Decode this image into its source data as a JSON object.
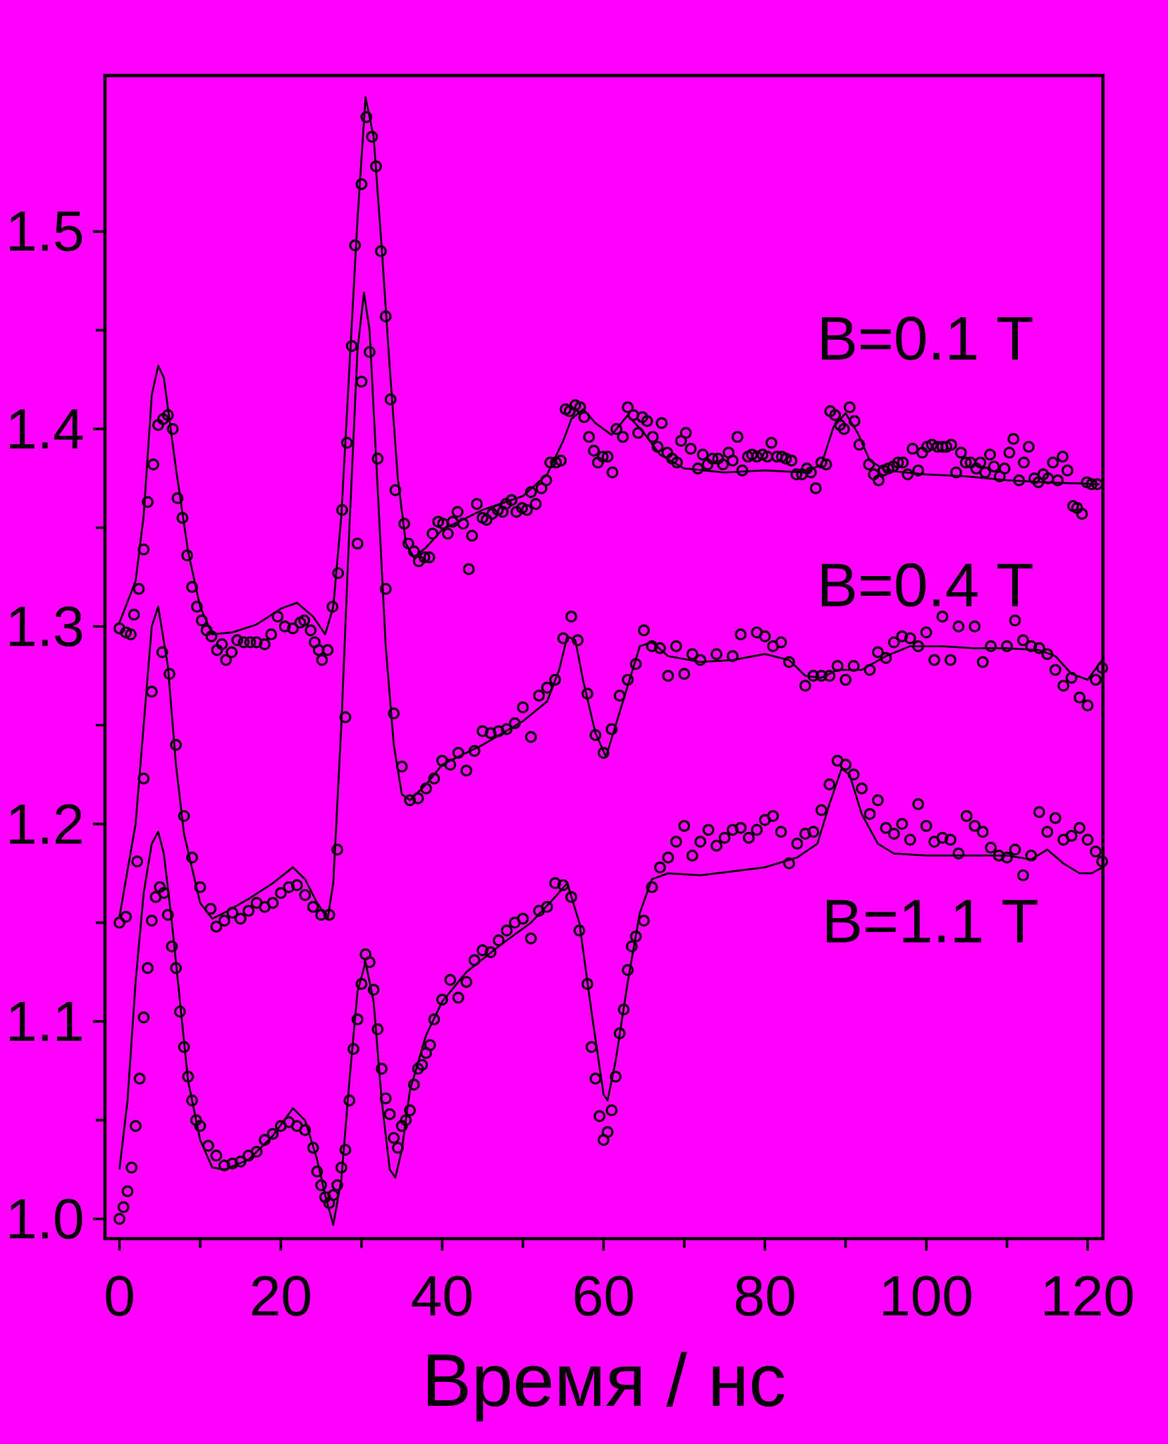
{
  "chart_data": {
    "type": "scatter",
    "xlabel": "Время / нс",
    "xlim": [
      -1.8,
      121.9
    ],
    "ylim": [
      0.99,
      1.579
    ],
    "xticks": [
      0,
      20,
      40,
      60,
      80,
      100,
      120
    ],
    "yticks": [
      {
        "value": 1.0,
        "label": "1.0"
      },
      {
        "value": 1.1,
        "label": "1.1"
      },
      {
        "value": 1.2,
        "label": "1.2"
      },
      {
        "value": 1.3,
        "label": "1.3"
      },
      {
        "value": 1.4,
        "label": "1.4"
      },
      {
        "value": 1.5,
        "label": "1.5"
      }
    ],
    "series": [
      {
        "name": "B=0.1 T",
        "marker": "circle",
        "color": "#000000",
        "x": [
          0,
          0.8,
          1.4,
          1.8,
          2.4,
          3.0,
          3.5,
          4.2,
          4.8,
          5.4,
          6.0,
          6.6,
          7.2,
          7.8,
          8.4,
          9.0,
          9.6,
          10.2,
          10.8,
          11.4,
          12.1,
          12.7,
          13.2,
          13.9,
          14.6,
          15.4,
          16.2,
          17.0,
          18.0,
          18.8,
          19.6,
          20.5,
          21.5,
          22.4,
          22.9,
          23.7,
          24.2,
          24.7,
          25.1,
          25.8,
          26.4,
          27.1,
          27.6,
          28.2,
          28.8,
          29.2,
          30.0,
          30.6,
          31.3,
          31.8,
          32.4,
          33.0,
          33.6,
          34.2,
          35.3,
          35.8,
          36.5,
          37.1,
          37.8,
          38.4,
          38.8,
          39.5,
          40.1,
          40.7,
          41.3,
          41.9,
          42.6,
          43.3,
          43.7,
          44.3,
          45.0,
          45.5,
          46.2,
          46.9,
          47.5,
          47.9,
          48.6,
          49.2,
          49.9,
          50.5,
          51.0,
          51.6,
          52.3,
          52.9,
          53.4,
          54.1,
          54.7,
          55.3,
          55.8,
          56.5,
          57.1,
          57.6,
          58.2,
          58.8,
          59.3,
          59.9,
          60.5,
          61.1,
          61.6,
          62.4,
          63.0,
          63.7,
          64.3,
          64.8,
          65.4,
          66.1,
          66.7,
          67.2,
          67.9,
          68.5,
          69.1,
          69.6,
          70.2,
          70.8,
          71.7,
          72.3,
          72.9,
          73.5,
          74.2,
          74.8,
          75.5,
          76.0,
          76.6,
          77.2,
          77.9,
          78.4,
          79.0,
          79.7,
          80.3,
          80.8,
          81.5,
          82.1,
          82.6,
          83.3,
          83.9,
          84.6,
          85.2,
          85.7,
          86.3,
          87.0,
          87.6,
          88.1,
          88.7,
          89.3,
          89.8,
          90.5,
          91.1,
          91.7,
          92.9,
          93.5,
          94.1,
          94.7,
          95.3,
          95.9,
          96.5,
          97.1,
          97.7,
          98.3,
          99.0,
          99.5,
          100.1,
          100.7,
          101.4,
          102.0,
          102.5,
          103.1,
          103.7,
          104.3,
          104.9,
          105.5,
          106.2,
          106.7,
          107.3,
          107.9,
          108.4,
          109.1,
          109.7,
          110.3,
          110.8,
          111.5,
          112.1,
          112.7,
          113.4,
          113.9,
          114.5,
          115.1,
          115.7,
          116.3,
          116.9,
          117.5,
          118.2,
          118.7,
          119.3,
          119.9,
          120.5,
          121.2
        ],
        "values": [
          1.299,
          1.297,
          1.296,
          1.306,
          1.319,
          1.339,
          1.363,
          1.382,
          1.402,
          1.405,
          1.407,
          1.4,
          1.365,
          1.355,
          1.336,
          1.32,
          1.31,
          1.303,
          1.298,
          1.295,
          1.288,
          1.291,
          1.283,
          1.287,
          1.293,
          1.292,
          1.292,
          1.292,
          1.291,
          1.296,
          1.305,
          1.3,
          1.299,
          1.302,
          1.303,
          1.298,
          1.292,
          1.288,
          1.283,
          1.288,
          1.31,
          1.327,
          1.359,
          1.393,
          1.442,
          1.493,
          1.524,
          1.558,
          1.548,
          1.533,
          1.49,
          1.457,
          1.415,
          1.369,
          1.352,
          1.342,
          1.338,
          1.333,
          1.335,
          1.335,
          1.347,
          1.353,
          1.352,
          1.347,
          1.353,
          1.358,
          1.352,
          1.329,
          1.346,
          1.362,
          1.355,
          1.354,
          1.357,
          1.359,
          1.358,
          1.362,
          1.364,
          1.358,
          1.36,
          1.359,
          1.368,
          1.362,
          1.37,
          1.374,
          1.383,
          1.383,
          1.384,
          1.41,
          1.409,
          1.412,
          1.411,
          1.406,
          1.396,
          1.389,
          1.383,
          1.386,
          1.386,
          1.378,
          1.4,
          1.396,
          1.411,
          1.407,
          1.398,
          1.406,
          1.404,
          1.396,
          1.391,
          1.403,
          1.388,
          1.385,
          1.383,
          1.394,
          1.398,
          1.39,
          1.38,
          1.387,
          1.382,
          1.385,
          1.385,
          1.382,
          1.388,
          1.384,
          1.396,
          1.379,
          1.386,
          1.387,
          1.386,
          1.387,
          1.386,
          1.393,
          1.386,
          1.386,
          1.385,
          1.384,
          1.377,
          1.377,
          1.38,
          1.378,
          1.37,
          1.383,
          1.382,
          1.409,
          1.407,
          1.402,
          1.4,
          1.411,
          1.404,
          1.392,
          1.382,
          1.377,
          1.374,
          1.379,
          1.38,
          1.381,
          1.383,
          1.383,
          1.377,
          1.39,
          1.379,
          1.388,
          1.391,
          1.392,
          1.391,
          1.391,
          1.391,
          1.392,
          1.378,
          1.388,
          1.383,
          1.383,
          1.38,
          1.383,
          1.378,
          1.387,
          1.381,
          1.376,
          1.38,
          1.388,
          1.395,
          1.374,
          1.383,
          1.391,
          1.375,
          1.373,
          1.377,
          1.375,
          1.383,
          1.374,
          1.386,
          1.379,
          1.361,
          1.36,
          1.357,
          1.373,
          1.372,
          1.372
        ]
      },
      {
        "type": "line",
        "marker": "none",
        "color": "#000000",
        "x": [
          0,
          2,
          3,
          4,
          4.8,
          5.5,
          7,
          8.5,
          10,
          11.5,
          14,
          17,
          20,
          22,
          24,
          25.5,
          26.5,
          27.5,
          28.5,
          29.5,
          30.5,
          31.5,
          32.5,
          33.5,
          34.5,
          35.5,
          36.5,
          38,
          40,
          45,
          50,
          53,
          55,
          56,
          57.5,
          59,
          61,
          63,
          65,
          67,
          70,
          75,
          80,
          85,
          87,
          88.5,
          90,
          91.5,
          93,
          95,
          100,
          105,
          110,
          115,
          121.5
        ],
        "values": [
          1.302,
          1.323,
          1.356,
          1.417,
          1.432,
          1.426,
          1.38,
          1.338,
          1.31,
          1.296,
          1.297,
          1.301,
          1.309,
          1.312,
          1.305,
          1.296,
          1.31,
          1.356,
          1.431,
          1.506,
          1.568,
          1.548,
          1.492,
          1.431,
          1.375,
          1.342,
          1.335,
          1.34,
          1.349,
          1.359,
          1.366,
          1.377,
          1.394,
          1.405,
          1.41,
          1.403,
          1.397,
          1.407,
          1.398,
          1.387,
          1.38,
          1.378,
          1.379,
          1.378,
          1.382,
          1.401,
          1.408,
          1.398,
          1.384,
          1.379,
          1.377,
          1.376,
          1.374,
          1.373,
          1.372
        ]
      },
      {
        "name": "B=0.4 T",
        "marker": "circle",
        "color": "#000000",
        "x": [
          0,
          0.8,
          2.2,
          3,
          4,
          5.3,
          6.2,
          7,
          8,
          9,
          10,
          11.3,
          12,
          13,
          14,
          15,
          16,
          17,
          18,
          19,
          20,
          21,
          22,
          23,
          24,
          25,
          26,
          27,
          28,
          29.5,
          30,
          31,
          32,
          33,
          34,
          35,
          36,
          37,
          38,
          39,
          40,
          41,
          42,
          43,
          44,
          45,
          46,
          47,
          48,
          49,
          50,
          51,
          52,
          53,
          54,
          55,
          56,
          56.8,
          58,
          59,
          60,
          61,
          62,
          63,
          64,
          65,
          66,
          67,
          68,
          69,
          70,
          71,
          72,
          74,
          76,
          77,
          79,
          80,
          81,
          82,
          83,
          85,
          86,
          87,
          88,
          89,
          90,
          91,
          93,
          94,
          95,
          96,
          97,
          98,
          99,
          100,
          101,
          102,
          103,
          104,
          106,
          107,
          108,
          110,
          111,
          112,
          113,
          114,
          115,
          116,
          117,
          118,
          119,
          120,
          121,
          121.8
        ],
        "values": [
          1.15,
          1.153,
          1.181,
          1.223,
          1.267,
          1.287,
          1.276,
          1.24,
          1.204,
          1.183,
          1.168,
          1.157,
          1.148,
          1.151,
          1.155,
          1.152,
          1.156,
          1.16,
          1.158,
          1.16,
          1.165,
          1.168,
          1.169,
          1.164,
          1.158,
          1.154,
          1.154,
          1.187,
          1.254,
          1.342,
          1.424,
          1.439,
          1.385,
          1.319,
          1.256,
          1.229,
          1.212,
          1.213,
          1.218,
          1.223,
          1.232,
          1.23,
          1.236,
          1.227,
          1.237,
          1.247,
          1.246,
          1.247,
          1.248,
          1.251,
          1.259,
          1.244,
          1.265,
          1.269,
          1.273,
          1.294,
          1.305,
          1.293,
          1.266,
          1.245,
          1.236,
          1.248,
          1.265,
          1.273,
          1.281,
          1.298,
          1.29,
          1.289,
          1.275,
          1.29,
          1.276,
          1.286,
          1.283,
          1.286,
          1.285,
          1.296,
          1.297,
          1.295,
          1.29,
          1.292,
          1.282,
          1.27,
          1.275,
          1.275,
          1.275,
          1.28,
          1.273,
          1.28,
          1.278,
          1.287,
          1.284,
          1.292,
          1.295,
          1.294,
          1.29,
          1.297,
          1.283,
          1.305,
          1.283,
          1.3,
          1.3,
          1.282,
          1.29,
          1.29,
          1.303,
          1.293,
          1.29,
          1.289,
          1.286,
          1.278,
          1.27,
          1.274,
          1.264,
          1.26,
          1.273,
          1.279
        ]
      },
      {
        "type": "line",
        "marker": "none",
        "color": "#000000",
        "x": [
          0,
          2,
          3,
          4,
          4.8,
          6,
          7,
          8,
          10,
          11.5,
          13,
          16,
          19,
          21.5,
          23,
          24.5,
          25.8,
          26.5,
          27.5,
          28.5,
          29.5,
          30.3,
          31,
          32,
          33,
          34,
          35,
          36,
          38,
          40,
          45,
          50,
          53,
          54.5,
          55.5,
          56.5,
          57.5,
          59,
          60.3,
          61.5,
          63,
          64.5,
          66,
          68,
          72,
          76,
          80,
          83,
          85,
          87,
          89,
          92,
          95,
          98,
          102,
          106,
          110,
          114,
          116,
          118,
          120,
          121.8
        ],
        "values": [
          1.153,
          1.2,
          1.25,
          1.3,
          1.31,
          1.28,
          1.23,
          1.195,
          1.16,
          1.152,
          1.155,
          1.162,
          1.17,
          1.178,
          1.172,
          1.16,
          1.152,
          1.17,
          1.25,
          1.35,
          1.44,
          1.469,
          1.45,
          1.37,
          1.29,
          1.24,
          1.215,
          1.212,
          1.22,
          1.23,
          1.24,
          1.252,
          1.262,
          1.278,
          1.295,
          1.293,
          1.272,
          1.246,
          1.234,
          1.25,
          1.27,
          1.29,
          1.292,
          1.285,
          1.282,
          1.283,
          1.286,
          1.283,
          1.275,
          1.274,
          1.278,
          1.278,
          1.285,
          1.29,
          1.29,
          1.289,
          1.289,
          1.288,
          1.285,
          1.276,
          1.273,
          1.283
        ]
      },
      {
        "name": "B=1.1 T",
        "marker": "circle",
        "color": "#000000",
        "x": [
          0,
          0.5,
          1,
          1.5,
          2,
          2.5,
          3,
          3.5,
          4,
          4.5,
          5,
          5.5,
          6,
          6.5,
          7,
          7.5,
          8,
          8.5,
          9,
          9.5,
          10,
          11,
          12,
          13,
          14,
          15,
          16,
          17,
          18,
          19,
          20,
          21,
          22,
          23,
          24,
          24.5,
          25,
          25.5,
          26,
          26.5,
          27,
          27.5,
          28,
          28.5,
          29,
          29.5,
          30,
          30.5,
          31,
          31.5,
          32,
          32.5,
          33,
          33.5,
          34,
          34.5,
          35,
          35.5,
          36,
          36.5,
          37,
          37.5,
          38,
          38.5,
          39,
          40,
          41,
          42,
          43,
          44,
          45,
          46,
          47,
          48,
          49,
          50,
          51,
          52,
          53,
          54,
          55,
          56,
          57,
          58,
          58.5,
          59,
          59.5,
          60,
          60.5,
          61,
          61.5,
          62,
          62.5,
          63,
          63.5,
          64,
          65,
          66,
          67,
          68,
          69,
          70,
          71,
          72,
          73,
          74,
          75,
          76,
          77,
          78,
          79,
          80,
          81,
          82,
          83,
          84,
          85,
          86,
          87,
          88,
          89,
          90,
          91,
          92,
          93,
          94,
          95,
          96,
          97,
          98,
          99,
          100,
          101,
          102,
          103,
          104,
          105,
          106,
          107,
          108,
          109,
          110,
          111,
          112,
          113,
          114,
          115,
          116,
          117,
          118,
          119,
          120,
          121,
          121.8
        ],
        "values": [
          1.0,
          1.006,
          1.014,
          1.026,
          1.047,
          1.071,
          1.102,
          1.127,
          1.151,
          1.163,
          1.168,
          1.165,
          1.154,
          1.138,
          1.127,
          1.105,
          1.087,
          1.072,
          1.06,
          1.05,
          1.047,
          1.037,
          1.032,
          1.027,
          1.028,
          1.029,
          1.032,
          1.034,
          1.04,
          1.043,
          1.047,
          1.049,
          1.047,
          1.045,
          1.036,
          1.024,
          1.017,
          1.011,
          1.008,
          1.012,
          1.017,
          1.026,
          1.035,
          1.06,
          1.086,
          1.101,
          1.119,
          1.134,
          1.13,
          1.116,
          1.096,
          1.076,
          1.061,
          1.053,
          1.041,
          1.036,
          1.047,
          1.05,
          1.055,
          1.068,
          1.076,
          1.078,
          1.084,
          1.088,
          1.101,
          1.111,
          1.121,
          1.112,
          1.12,
          1.131,
          1.136,
          1.135,
          1.141,
          1.146,
          1.15,
          1.152,
          1.142,
          1.156,
          1.158,
          1.17,
          1.169,
          1.163,
          1.146,
          1.119,
          1.087,
          1.071,
          1.052,
          1.04,
          1.044,
          1.055,
          1.072,
          1.094,
          1.106,
          1.126,
          1.138,
          1.143,
          1.151,
          1.168,
          1.178,
          1.183,
          1.191,
          1.199,
          1.184,
          1.191,
          1.197,
          1.189,
          1.193,
          1.197,
          1.198,
          1.193,
          1.197,
          1.202,
          1.204,
          1.196,
          1.18,
          1.19,
          1.195,
          1.196,
          1.207,
          1.22,
          1.232,
          1.23,
          1.225,
          1.218,
          1.205,
          1.212,
          1.198,
          1.195,
          1.2,
          1.192,
          1.21,
          1.199,
          1.191,
          1.193,
          1.192,
          1.185,
          1.204,
          1.199,
          1.196,
          1.188,
          1.184,
          1.183,
          1.187,
          1.174,
          1.184,
          1.206,
          1.196,
          1.203,
          1.192,
          1.194,
          1.198,
          1.192,
          1.186,
          1.181
        ]
      },
      {
        "type": "line",
        "marker": "none",
        "color": "#000000",
        "x": [
          0,
          1,
          2,
          3,
          4,
          4.8,
          5.5,
          6.5,
          7.5,
          8.5,
          10,
          11.5,
          13,
          16,
          19,
          21.5,
          23,
          24.5,
          25.5,
          26.5,
          27.5,
          28.5,
          29.5,
          30.5,
          31.5,
          32.5,
          33.5,
          34.2,
          35,
          36,
          38,
          40,
          43,
          47,
          51,
          54,
          55.5,
          57,
          58.5,
          60,
          60.5,
          61.5,
          63,
          64.5,
          66,
          68,
          72,
          76,
          80,
          84,
          86.5,
          88,
          89.5,
          90.5,
          92,
          94,
          96,
          100,
          105,
          110,
          113,
          115,
          117,
          119,
          120.5,
          121.8
        ],
        "values": [
          1.025,
          1.06,
          1.12,
          1.165,
          1.19,
          1.196,
          1.185,
          1.15,
          1.11,
          1.07,
          1.04,
          1.026,
          1.025,
          1.03,
          1.042,
          1.056,
          1.05,
          1.03,
          1.012,
          0.997,
          1.02,
          1.07,
          1.115,
          1.13,
          1.11,
          1.06,
          1.025,
          1.021,
          1.035,
          1.065,
          1.093,
          1.11,
          1.125,
          1.138,
          1.15,
          1.163,
          1.17,
          1.15,
          1.105,
          1.063,
          1.06,
          1.08,
          1.12,
          1.155,
          1.172,
          1.175,
          1.174,
          1.176,
          1.178,
          1.183,
          1.19,
          1.21,
          1.228,
          1.225,
          1.205,
          1.19,
          1.185,
          1.184,
          1.184,
          1.184,
          1.182,
          1.187,
          1.18,
          1.175,
          1.175,
          1.178
        ]
      }
    ]
  }
}
